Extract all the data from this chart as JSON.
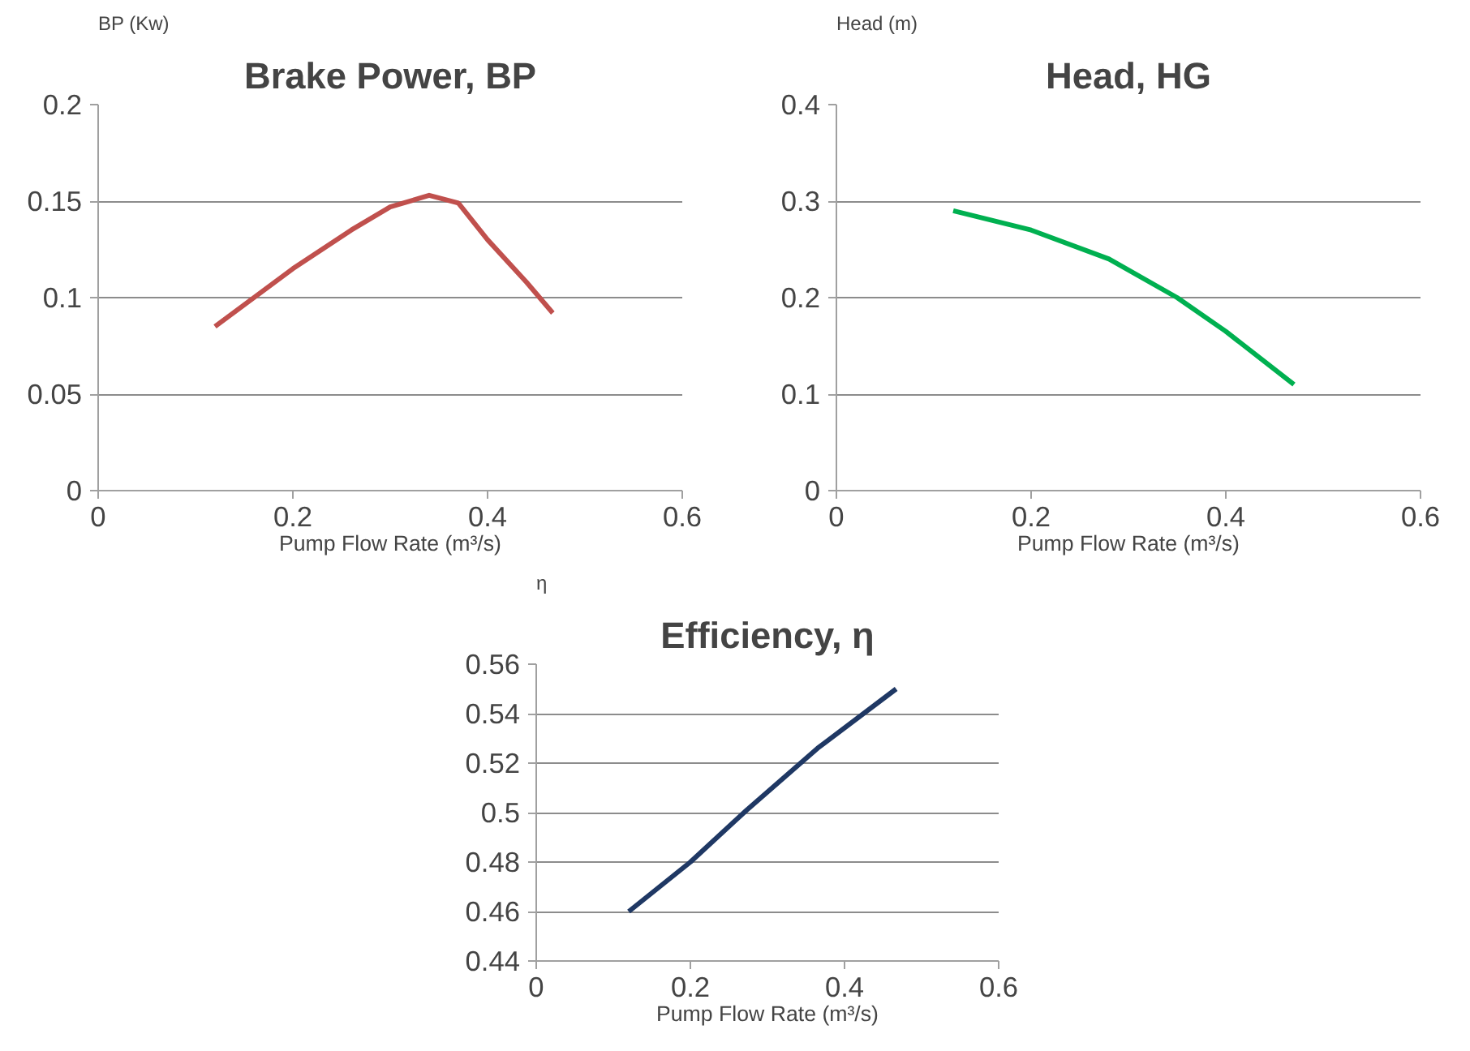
{
  "chart_data": [
    {
      "type": "line",
      "title": "Brake Power, BP",
      "ylabel": "BP (Kw)",
      "xlabel": "Pump Flow Rate (m³/s)",
      "x": [
        0.12,
        0.2,
        0.26,
        0.3,
        0.34,
        0.37,
        0.4,
        0.44,
        0.467
      ],
      "series": [
        {
          "color": "#c0504d",
          "values": [
            0.085,
            0.115,
            0.135,
            0.147,
            0.153,
            0.149,
            0.13,
            0.108,
            0.092
          ]
        }
      ],
      "xlim": [
        0,
        0.6
      ],
      "xticks": [
        0,
        0.2,
        0.4,
        0.6
      ],
      "ylim": [
        0,
        0.2
      ],
      "yticks": [
        0,
        0.05,
        0.1,
        0.15,
        0.2
      ],
      "grid": "y",
      "marker": "none",
      "line_style": "solid"
    },
    {
      "type": "line",
      "title": "Head, HG",
      "ylabel": "Head (m)",
      "xlabel": "Pump Flow Rate (m³/s)",
      "x": [
        0.12,
        0.2,
        0.28,
        0.35,
        0.4,
        0.47
      ],
      "series": [
        {
          "color": "#00b050",
          "values": [
            0.29,
            0.27,
            0.24,
            0.2,
            0.165,
            0.11
          ]
        }
      ],
      "xlim": [
        0,
        0.6
      ],
      "xticks": [
        0,
        0.2,
        0.4,
        0.6
      ],
      "ylim": [
        0,
        0.4
      ],
      "yticks": [
        0,
        0.1,
        0.2,
        0.3,
        0.4
      ],
      "grid": "y",
      "marker": "none",
      "line_style": "solid"
    },
    {
      "type": "line",
      "title": "Efficiency, η",
      "ylabel": "η",
      "xlabel": "Pump Flow Rate (m³/s)",
      "x": [
        0.12,
        0.2,
        0.273,
        0.365,
        0.467
      ],
      "series": [
        {
          "color": "#1f3864",
          "values": [
            0.46,
            0.48,
            0.501,
            0.526,
            0.55
          ]
        }
      ],
      "xlim": [
        0,
        0.6
      ],
      "xticks": [
        0,
        0.2,
        0.4,
        0.6
      ],
      "ylim": [
        0.44,
        0.56
      ],
      "yticks": [
        0.44,
        0.46,
        0.48,
        0.5,
        0.52,
        0.54,
        0.56
      ],
      "grid": "y",
      "marker": "none",
      "line_style": "solid"
    }
  ]
}
